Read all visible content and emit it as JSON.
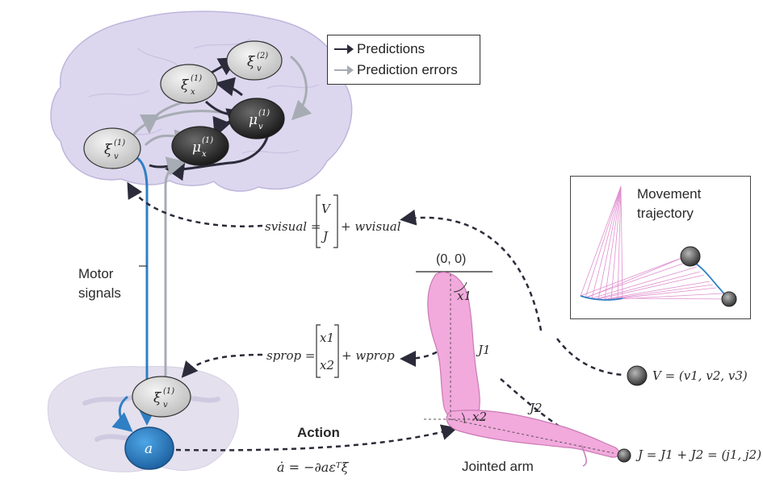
{
  "legend": {
    "predictions_label": "Predictions",
    "prediction_errors_label": "Prediction errors",
    "predictions_color": "#2b2b3a",
    "prediction_errors_color": "#a7acb4"
  },
  "nodes": {
    "xi_v2": {
      "sym": "ξ",
      "sup": "(2)",
      "sub": "v"
    },
    "xi_x1": {
      "sym": "ξ",
      "sup": "(1)",
      "sub": "x"
    },
    "mu_v1": {
      "sym": "μ",
      "sup": "(1)",
      "sub": "v"
    },
    "mu_x1": {
      "sym": "μ",
      "sup": "(1)",
      "sub": "x"
    },
    "xi_v1_brain": {
      "sym": "ξ",
      "sup": "(1)",
      "sub": "v"
    },
    "xi_v1_spinal": {
      "sym": "ξ",
      "sup": "(1)",
      "sub": "v"
    },
    "action_node": {
      "sym": "a"
    }
  },
  "labels": {
    "motor_signals_line1": "Motor",
    "motor_signals_line2": "signals",
    "action": "Action",
    "action_equation": "ȧ = −∂aεᵀξ",
    "jointed_arm": "Jointed arm",
    "origin": "(0, 0)",
    "x1": "x1",
    "x2": "x2",
    "J1": "J1",
    "J2": "J2",
    "movement_trajectory_line1": "Movement",
    "movement_trajectory_line2": "trajectory"
  },
  "equations": {
    "s_visual_lhs": "svisual =",
    "s_visual_vec_top": "V",
    "s_visual_vec_bot": "J",
    "s_visual_rhs": "+ wvisual",
    "s_prop_lhs": "sprop =",
    "s_prop_vec_top": "x1",
    "s_prop_vec_bot": "x2",
    "s_prop_rhs": "+ wprop",
    "V_def": "V = (v1, v2, v3)",
    "J_def": "J = J1 + J2 = (j1, j2)"
  },
  "colors": {
    "brain": "#dcd7ee",
    "brain_outline": "#bfb6dc",
    "spinal": "#e4e0ee",
    "node_light": "#dadada",
    "node_dark": "#3a3a3a",
    "motor_blue": "#2f7fc4",
    "arm": "#f2a9dc",
    "trajectory": "#e08fcf"
  }
}
